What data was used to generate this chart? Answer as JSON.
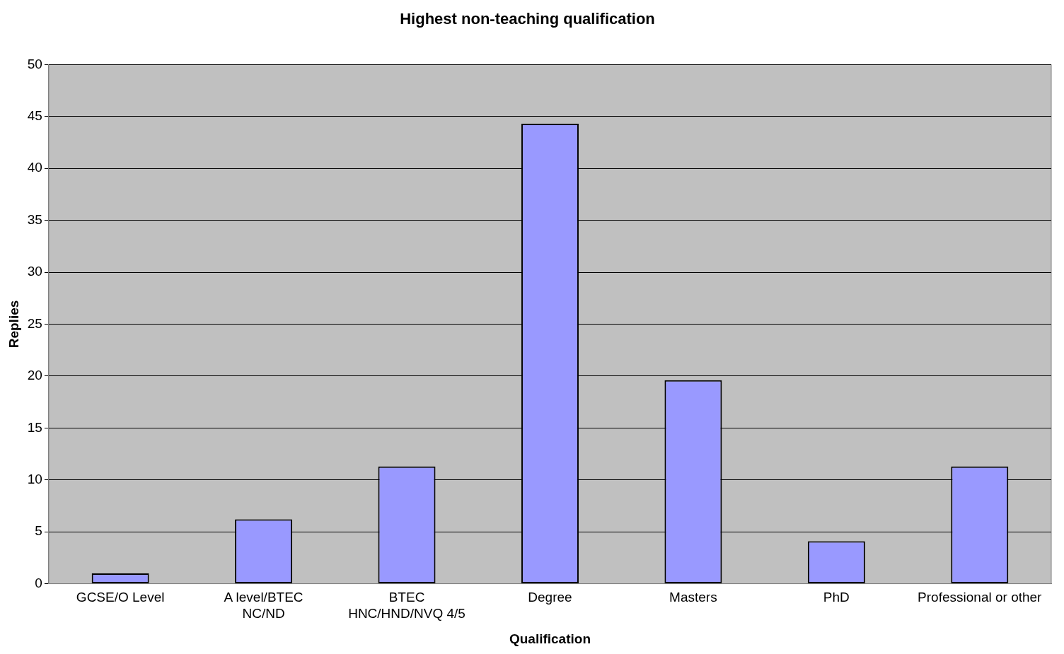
{
  "chart_data": {
    "type": "bar",
    "title": "Highest non-teaching qualification",
    "xlabel": "Qualification",
    "ylabel": "Replies",
    "categories": [
      "GCSE/O Level",
      "A level/BTEC\nNC/ND",
      "BTEC\nHNC/HND/NVQ 4/5",
      "Degree",
      "Masters",
      "PhD",
      "Professional or other"
    ],
    "values": [
      1,
      6.2,
      11.3,
      44.3,
      19.6,
      4.1,
      11.3
    ],
    "color": "#9999ff",
    "ylim": [
      0,
      50
    ],
    "yticks": [
      0,
      5,
      10,
      15,
      20,
      25,
      30,
      35,
      40,
      45,
      50
    ],
    "grid": "y",
    "legend": false
  }
}
